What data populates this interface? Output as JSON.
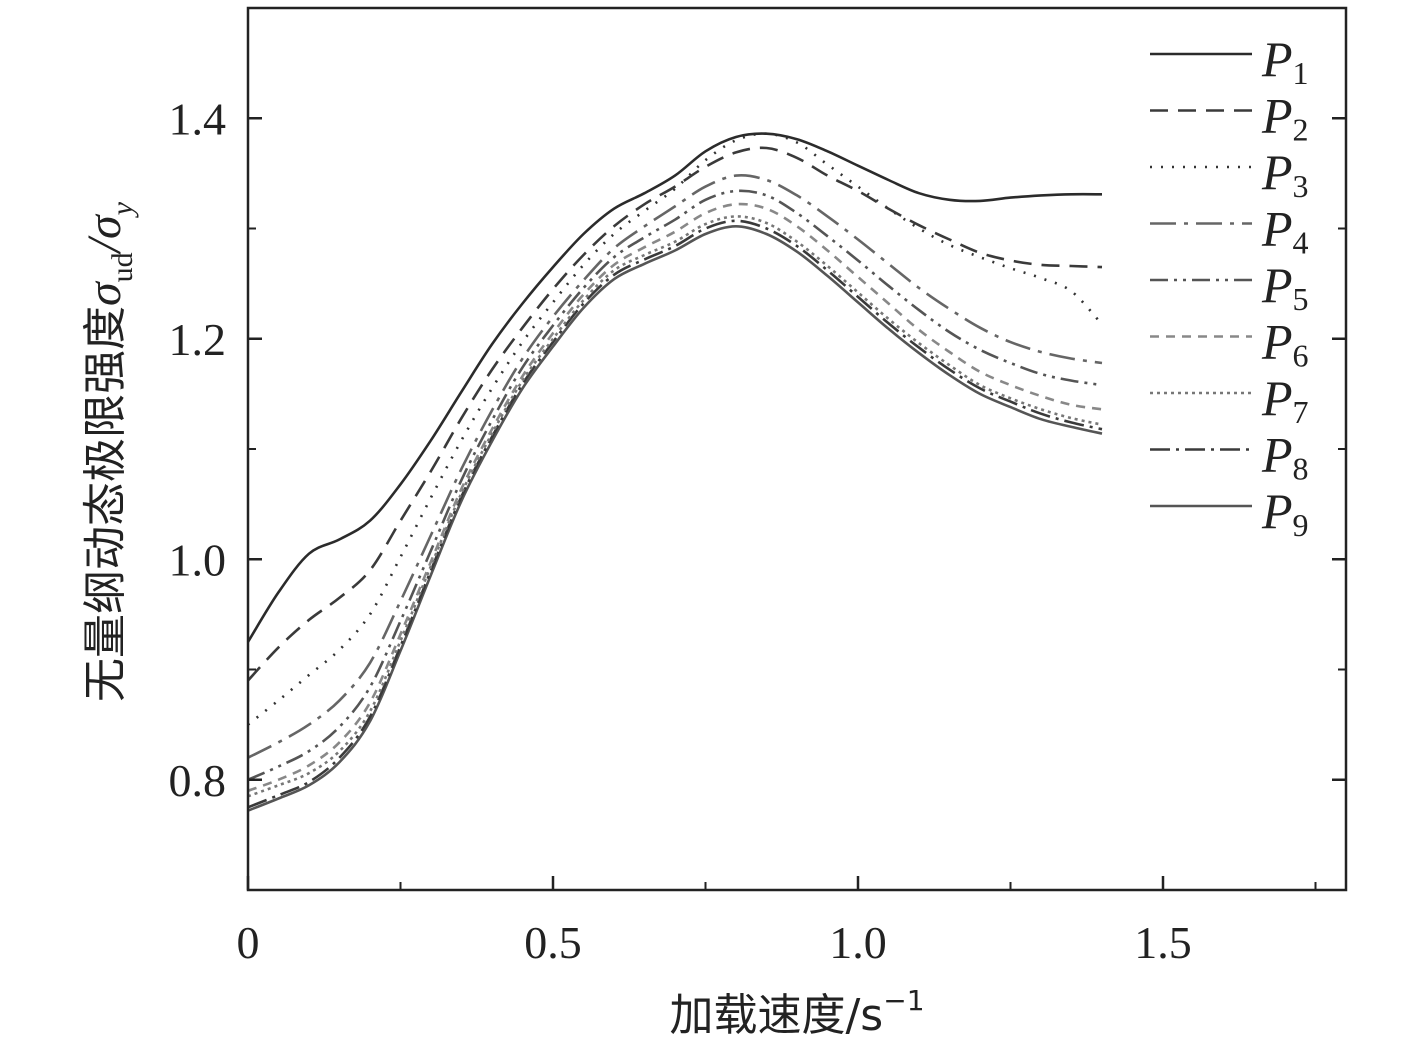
{
  "chart_data": {
    "type": "line",
    "xlabel": "加载速度/s",
    "xlabel_sup": "−1",
    "ylabel": "无量纲动态极限强度",
    "ylabel_sym": "σ",
    "ylabel_sub1": "ud",
    "ylabel_sym2": "/σ",
    "ylabel_sub2": "y",
    "xlim": [
      0,
      1.8
    ],
    "ylim": [
      0.7,
      1.5
    ],
    "x_ticks": [
      {
        "value": 0,
        "label": "0"
      },
      {
        "value": 0.5,
        "label": "0.5"
      },
      {
        "value": 1.0,
        "label": "1.0"
      },
      {
        "value": 1.5,
        "label": "1.5"
      }
    ],
    "y_ticks": [
      {
        "value": 0.8,
        "label": "0.8"
      },
      {
        "value": 1.0,
        "label": "1.0"
      },
      {
        "value": 1.2,
        "label": "1.2"
      },
      {
        "value": 1.4,
        "label": "1.4"
      }
    ],
    "grid": false,
    "legend_position": "top-right",
    "x": [
      0,
      0.05,
      0.1,
      0.15,
      0.2,
      0.25,
      0.3,
      0.35,
      0.4,
      0.45,
      0.5,
      0.55,
      0.6,
      0.65,
      0.7,
      0.75,
      0.8,
      0.85,
      0.9,
      0.95,
      1.0,
      1.05,
      1.1,
      1.15,
      1.2,
      1.25,
      1.3,
      1.35,
      1.4
    ],
    "series": [
      {
        "name": "P",
        "sub": "1",
        "dash": "",
        "color": "#2b2b2b",
        "values": [
          0.925,
          0.97,
          1.005,
          1.018,
          1.035,
          1.068,
          1.108,
          1.152,
          1.195,
          1.232,
          1.265,
          1.295,
          1.318,
          1.332,
          1.348,
          1.37,
          1.383,
          1.386,
          1.381,
          1.37,
          1.357,
          1.344,
          1.332,
          1.326,
          1.325,
          1.328,
          1.33,
          1.331,
          1.331
        ]
      },
      {
        "name": "P",
        "sub": "2",
        "dash": "18,10",
        "color": "#3a3a3a",
        "values": [
          0.89,
          0.92,
          0.945,
          0.965,
          0.99,
          1.035,
          1.08,
          1.128,
          1.172,
          1.21,
          1.245,
          1.276,
          1.302,
          1.322,
          1.338,
          1.356,
          1.369,
          1.373,
          1.364,
          1.348,
          1.334,
          1.318,
          1.303,
          1.29,
          1.278,
          1.271,
          1.267,
          1.266,
          1.265
        ]
      },
      {
        "name": "P",
        "sub": "3",
        "dash": "2,9",
        "color": "#333333",
        "values": [
          0.85,
          0.872,
          0.895,
          0.918,
          0.95,
          1.002,
          1.056,
          1.108,
          1.155,
          1.197,
          1.233,
          1.267,
          1.295,
          1.316,
          1.336,
          1.362,
          1.38,
          1.386,
          1.378,
          1.358,
          1.338,
          1.318,
          1.3,
          1.285,
          1.274,
          1.264,
          1.255,
          1.243,
          1.213
        ]
      },
      {
        "name": "P",
        "sub": "4",
        "dash": "26,8,4,8",
        "color": "#666666",
        "values": [
          0.82,
          0.834,
          0.85,
          0.872,
          0.906,
          0.962,
          1.022,
          1.082,
          1.135,
          1.182,
          1.22,
          1.253,
          1.282,
          1.302,
          1.32,
          1.338,
          1.348,
          1.344,
          1.33,
          1.311,
          1.29,
          1.268,
          1.246,
          1.227,
          1.21,
          1.197,
          1.188,
          1.182,
          1.178
        ]
      },
      {
        "name": "P",
        "sub": "5",
        "dash": "18,6,3,6,3,6",
        "color": "#555555",
        "values": [
          0.8,
          0.812,
          0.826,
          0.848,
          0.884,
          0.944,
          1.008,
          1.072,
          1.126,
          1.174,
          1.212,
          1.246,
          1.274,
          1.292,
          1.308,
          1.326,
          1.334,
          1.33,
          1.314,
          1.293,
          1.271,
          1.248,
          1.226,
          1.206,
          1.19,
          1.178,
          1.168,
          1.162,
          1.158
        ]
      },
      {
        "name": "P",
        "sub": "6",
        "dash": "9,7",
        "color": "#888888",
        "values": [
          0.79,
          0.8,
          0.813,
          0.834,
          0.87,
          0.932,
          0.998,
          1.064,
          1.118,
          1.166,
          1.205,
          1.24,
          1.267,
          1.283,
          1.297,
          1.314,
          1.322,
          1.318,
          1.302,
          1.28,
          1.256,
          1.232,
          1.208,
          1.188,
          1.17,
          1.158,
          1.148,
          1.14,
          1.136
        ]
      },
      {
        "name": "P",
        "sub": "7",
        "dash": "3,4",
        "color": "#777777",
        "values": [
          0.785,
          0.795,
          0.806,
          0.826,
          0.862,
          0.926,
          0.994,
          1.06,
          1.114,
          1.162,
          1.2,
          1.235,
          1.262,
          1.276,
          1.288,
          1.304,
          1.311,
          1.305,
          1.288,
          1.266,
          1.242,
          1.218,
          1.196,
          1.176,
          1.158,
          1.146,
          1.136,
          1.128,
          1.122
        ]
      },
      {
        "name": "P",
        "sub": "8",
        "dash": "20,6,3,6",
        "color": "#3a3a3a",
        "values": [
          0.775,
          0.786,
          0.798,
          0.82,
          0.857,
          0.921,
          0.99,
          1.057,
          1.111,
          1.159,
          1.197,
          1.232,
          1.258,
          1.272,
          1.284,
          1.3,
          1.307,
          1.3,
          1.284,
          1.262,
          1.238,
          1.214,
          1.192,
          1.172,
          1.155,
          1.143,
          1.132,
          1.124,
          1.118
        ]
      },
      {
        "name": "P",
        "sub": "9",
        "dash": "",
        "color": "#555555",
        "values": [
          0.772,
          0.783,
          0.795,
          0.816,
          0.853,
          0.917,
          0.986,
          1.053,
          1.107,
          1.155,
          1.193,
          1.228,
          1.254,
          1.268,
          1.28,
          1.295,
          1.302,
          1.295,
          1.279,
          1.257,
          1.233,
          1.209,
          1.187,
          1.167,
          1.15,
          1.138,
          1.127,
          1.12,
          1.114
        ]
      }
    ]
  }
}
